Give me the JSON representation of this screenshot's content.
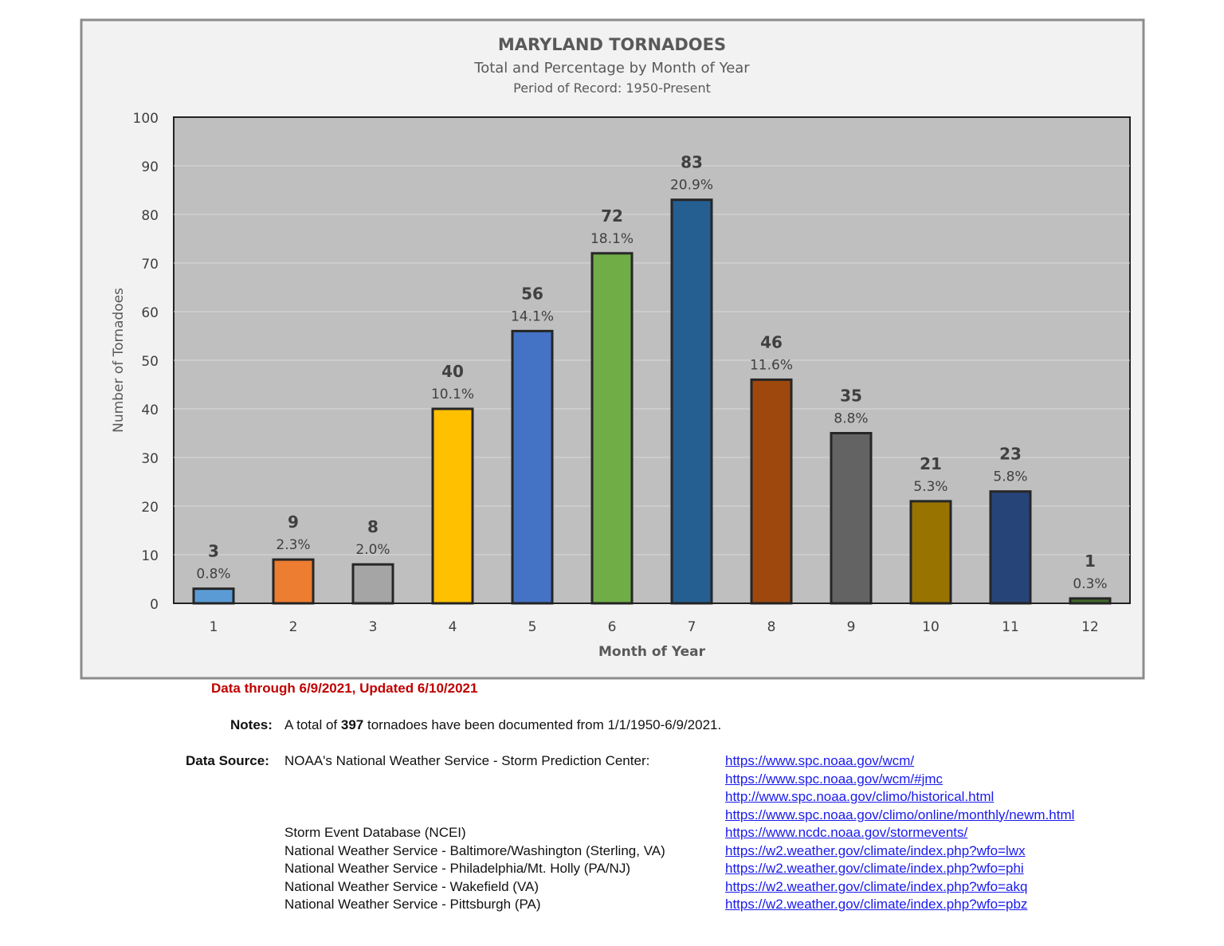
{
  "chart_data": {
    "type": "bar",
    "title": "MARYLAND TORNADOES",
    "subtitle": "Total and Percentage by Month of Year",
    "subtitle2": "Period of Record: 1950-Present",
    "xlabel": "Month of Year",
    "ylabel": "Number of Tornadoes",
    "ylim": [
      0,
      100
    ],
    "yticks": [
      0,
      10,
      20,
      30,
      40,
      50,
      60,
      70,
      80,
      90,
      100
    ],
    "grid": true,
    "categories": [
      "1",
      "2",
      "3",
      "4",
      "5",
      "6",
      "7",
      "8",
      "9",
      "10",
      "11",
      "12"
    ],
    "values": [
      3,
      9,
      8,
      40,
      56,
      72,
      83,
      46,
      35,
      21,
      23,
      1
    ],
    "percent_labels": [
      "0.8%",
      "2.3%",
      "2.0%",
      "10.1%",
      "14.1%",
      "18.1%",
      "20.9%",
      "11.6%",
      "8.8%",
      "5.3%",
      "5.8%",
      "0.3%"
    ],
    "colors": [
      "#5b9bd5",
      "#ed7d31",
      "#a5a5a5",
      "#ffc000",
      "#4472c4",
      "#70ad47",
      "#255e91",
      "#9e480e",
      "#636363",
      "#997300",
      "#264478",
      "#43682b"
    ]
  },
  "footer": {
    "updated": "Data through 6/9/2021, Updated 6/10/2021",
    "notes_label": "Notes:",
    "notes_pre": "A total of ",
    "notes_total": "397",
    "notes_post": " tornadoes have been documented from 1/1/1950-6/9/2021.",
    "source_label": "Data Source:",
    "sources": [
      {
        "name": "NOAA's National Weather Service - Storm Prediction Center:",
        "links": [
          "https://www.spc.noaa.gov/wcm/",
          "https://www.spc.noaa.gov/wcm/#jmc",
          "http://www.spc.noaa.gov/climo/historical.html",
          "https://www.spc.noaa.gov/climo/online/monthly/newm.html"
        ]
      },
      {
        "name": "Storm Event Database (NCEI)",
        "links": [
          "https://www.ncdc.noaa.gov/stormevents/"
        ]
      },
      {
        "name": "National Weather Service - Baltimore/Washington (Sterling, VA)",
        "links": [
          "https://w2.weather.gov/climate/index.php?wfo=lwx"
        ]
      },
      {
        "name": "National Weather Service - Philadelphia/Mt. Holly  (PA/NJ)",
        "links": [
          "https://w2.weather.gov/climate/index.php?wfo=phi"
        ]
      },
      {
        "name": "National Weather Service - Wakefield (VA)",
        "links": [
          "https://w2.weather.gov/climate/index.php?wfo=akq"
        ]
      },
      {
        "name": "National Weather Service - Pittsburgh (PA)",
        "links": [
          "https://w2.weather.gov/climate/index.php?wfo=pbz"
        ]
      }
    ]
  }
}
